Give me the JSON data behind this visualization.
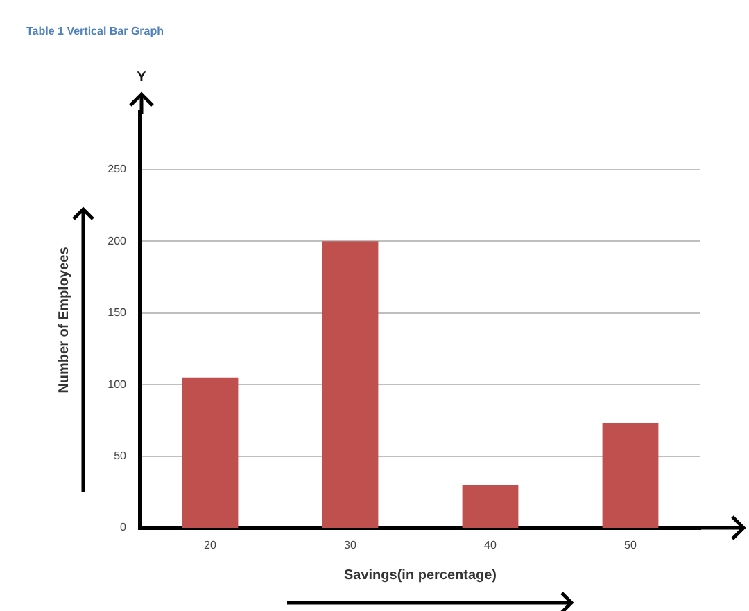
{
  "chart_data": {
    "type": "bar",
    "title": "Table 1 Vertical Bar Graph",
    "xlabel": "Savings(in percentage)",
    "ylabel": "Number of Employees",
    "categories": [
      "20",
      "30",
      "40",
      "50"
    ],
    "values": [
      105,
      200,
      30,
      73
    ],
    "color": "#c0504d",
    "ylim": [
      0,
      290
    ],
    "yticks": [
      0,
      50,
      100,
      150,
      200,
      250
    ],
    "grid": "y",
    "annotations": [
      "Y"
    ]
  }
}
